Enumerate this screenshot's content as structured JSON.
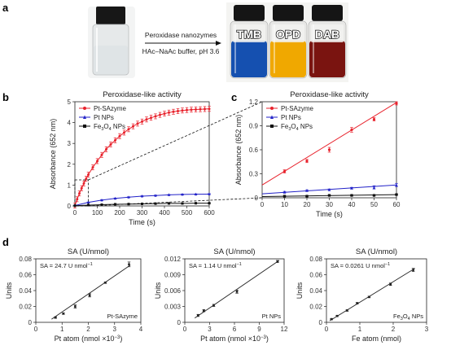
{
  "panel_labels": {
    "a": "a",
    "b": "b",
    "c": "c",
    "d": "d"
  },
  "panel_a": {
    "arrow_label_top": "Peroxidase nanozymes",
    "arrow_label_bottom": "HAc–NaAc buffer, pH 3.6",
    "vials": [
      {
        "label": "TMB",
        "color": "#1550b0"
      },
      {
        "label": "OPD",
        "color": "#f0a800"
      },
      {
        "label": "DAB",
        "color": "#7a1410"
      }
    ],
    "colors": {
      "clear_vial": "#e9ecec",
      "cap": "#151515"
    }
  },
  "colors": {
    "pt_sazyme": "#e8222c",
    "pt_nps": "#2222c8",
    "fe3o4_nps": "#111111"
  },
  "chart_data": [
    {
      "id": "b",
      "type": "line",
      "title": "Peroxidase-like activity",
      "xlabel": "Time (s)",
      "ylabel": "Absorbance (652 nm)",
      "xlim": [
        0,
        600
      ],
      "ylim": [
        0,
        5
      ],
      "xticks": [
        0,
        100,
        200,
        300,
        400,
        500,
        600
      ],
      "yticks": [
        0,
        1,
        2,
        3,
        4,
        5
      ],
      "legend": "top-left",
      "series": [
        {
          "key": "pt_sazyme",
          "name": "Pt-SAzyme",
          "marker": "circle",
          "x": [
            0,
            10,
            20,
            30,
            40,
            50,
            60,
            80,
            100,
            120,
            140,
            160,
            180,
            200,
            220,
            240,
            260,
            280,
            300,
            320,
            340,
            360,
            380,
            400,
            420,
            440,
            460,
            480,
            500,
            520,
            540,
            560,
            580,
            600
          ],
          "y": [
            0.02,
            0.32,
            0.6,
            0.85,
            1.08,
            1.3,
            1.5,
            1.85,
            2.15,
            2.45,
            2.72,
            2.95,
            3.15,
            3.35,
            3.52,
            3.68,
            3.82,
            3.95,
            4.05,
            4.15,
            4.23,
            4.3,
            4.37,
            4.43,
            4.48,
            4.52,
            4.55,
            4.58,
            4.6,
            4.62,
            4.63,
            4.64,
            4.65,
            4.66
          ],
          "err": 0.12
        },
        {
          "key": "pt_nps",
          "name": "Pt NPs",
          "marker": "triangle",
          "x": [
            0,
            60,
            120,
            180,
            240,
            300,
            360,
            420,
            480,
            540,
            600
          ],
          "y": [
            0.02,
            0.17,
            0.28,
            0.36,
            0.42,
            0.47,
            0.5,
            0.53,
            0.55,
            0.56,
            0.57
          ],
          "err": 0.02
        },
        {
          "key": "fe3o4_nps",
          "name": "Fe3O4 NPs",
          "name_main": "Fe",
          "name_sub1": "3",
          "name_mid": "O",
          "name_sub2": "4",
          "name_tail": " NPs",
          "marker": "square",
          "x": [
            0,
            60,
            120,
            180,
            240,
            300,
            360,
            420,
            480,
            540,
            600
          ],
          "y": [
            0.01,
            0.04,
            0.06,
            0.08,
            0.09,
            0.1,
            0.11,
            0.12,
            0.12,
            0.13,
            0.13
          ],
          "err": 0.01
        }
      ],
      "zoom_box": {
        "x": [
          0,
          60
        ],
        "y": [
          0,
          1.25
        ]
      }
    },
    {
      "id": "c",
      "type": "scatter",
      "title": "Peroxidase-like activity",
      "xlabel": "Time (s)",
      "ylabel": "Absorbance (652 nm)",
      "xlim": [
        0,
        60
      ],
      "ylim": [
        0,
        1.2
      ],
      "xticks": [
        0,
        10,
        20,
        30,
        40,
        50,
        60
      ],
      "yticks": [
        0,
        0.3,
        0.6,
        0.9,
        1.2
      ],
      "ytick_labels": [
        "0",
        "0.3",
        "0.6",
        "0.9",
        "1.2"
      ],
      "legend": "top-left",
      "series": [
        {
          "key": "pt_sazyme",
          "name": "Pt-SAzyme",
          "marker": "circle",
          "x": [
            10,
            20,
            30,
            40,
            50,
            60
          ],
          "y": [
            0.33,
            0.46,
            0.6,
            0.85,
            0.98,
            1.18
          ],
          "err": [
            0.02,
            0.02,
            0.03,
            0.03,
            0.02,
            0.02
          ],
          "fit": [
            0.16,
            1.19
          ]
        },
        {
          "key": "pt_nps",
          "name": "Pt NPs",
          "marker": "triangle",
          "x": [
            10,
            20,
            30,
            40,
            50,
            60
          ],
          "y": [
            0.07,
            0.09,
            0.1,
            0.12,
            0.13,
            0.16
          ],
          "err": [
            0.01,
            0.01,
            0.01,
            0.01,
            0.02,
            0.02
          ],
          "fit": [
            0.05,
            0.16
          ]
        },
        {
          "key": "fe3o4_nps",
          "name": "Fe3O4 NPs",
          "name_main": "Fe",
          "name_sub1": "3",
          "name_mid": "O",
          "name_sub2": "4",
          "name_tail": " NPs",
          "marker": "square",
          "x": [
            10,
            20,
            30,
            40,
            50,
            60
          ],
          "y": [
            0.02,
            0.02,
            0.03,
            0.03,
            0.03,
            0.04
          ],
          "err": [
            0.005,
            0.005,
            0.005,
            0.005,
            0.005,
            0.005
          ],
          "fit": [
            0.015,
            0.04
          ]
        }
      ]
    },
    {
      "id": "d1",
      "type": "scatter",
      "title": "SA (U/nmol)",
      "ylabel": "Units",
      "xlabel_main": "Pt atom (nmol ×10",
      "xlabel_sup": "−3",
      "xlabel_tail": ")",
      "xlim": [
        0,
        4
      ],
      "ylim": [
        0,
        0.08
      ],
      "xticks": [
        0,
        1,
        2,
        3,
        4
      ],
      "yticks": [
        0,
        0.02,
        0.04,
        0.06,
        0.08
      ],
      "ytick_labels": [
        "0",
        "0.02",
        "0.04",
        "0.06",
        "0.08"
      ],
      "annotation_main": "SA = 24.7 U nmol",
      "annotation_sup": "−1",
      "corner_label": "Pt-SAzyme",
      "x": [
        0.75,
        1.05,
        1.5,
        2.05,
        2.65,
        3.55
      ],
      "y": [
        0.006,
        0.011,
        0.02,
        0.034,
        0.05,
        0.073
      ],
      "err": [
        0.001,
        0.001,
        0.002,
        0.002,
        0.001,
        0.003
      ],
      "fit": [
        [
          0.6,
          0.004
        ],
        [
          3.6,
          0.072
        ]
      ]
    },
    {
      "id": "d2",
      "type": "scatter",
      "title": "SA (U/nmol)",
      "ylabel": "Units",
      "xlabel_main": "Pt atom (nmol ×10",
      "xlabel_sup": "−3",
      "xlabel_tail": ")",
      "xlim": [
        0,
        12
      ],
      "ylim": [
        0,
        0.012
      ],
      "xticks": [
        0,
        3,
        6,
        9,
        12
      ],
      "yticks": [
        0,
        0.003,
        0.006,
        0.009,
        0.012
      ],
      "ytick_labels": [
        "0",
        "0.003",
        "0.006",
        "0.009",
        "0.012"
      ],
      "annotation_main": "SA = 1.14 U nmol",
      "annotation_sup": "−1",
      "corner_label": "Pt NPs",
      "x": [
        1.6,
        2.3,
        3.5,
        6.3,
        11.2
      ],
      "y": [
        0.0013,
        0.0022,
        0.0032,
        0.0058,
        0.0115
      ],
      "err": [
        0.0002,
        0.0002,
        0.0002,
        0.0003,
        0.0002
      ],
      "fit": [
        [
          1.2,
          0.0008
        ],
        [
          11.4,
          0.0117
        ]
      ]
    },
    {
      "id": "d3",
      "type": "scatter",
      "title": "SA (U/nmol)",
      "ylabel": "Units",
      "xlabel": "Fe atom (nmol)",
      "xlim": [
        0,
        3
      ],
      "ylim": [
        0,
        0.08
      ],
      "xticks": [
        0,
        1,
        2,
        3
      ],
      "yticks": [
        0,
        0.02,
        0.04,
        0.06,
        0.08
      ],
      "ytick_labels": [
        "0",
        "0.02",
        "0.04",
        "0.06",
        "0.08"
      ],
      "annotation_main": "SA = 0.0261 U nmol",
      "annotation_sup": "−1",
      "corner_main": "Fe",
      "corner_sub1": "3",
      "corner_mid": "O",
      "corner_sub2": "4",
      "corner_tail": " NPs",
      "x": [
        0.15,
        0.32,
        0.62,
        0.92,
        1.28,
        1.92,
        2.6
      ],
      "y": [
        0.004,
        0.008,
        0.015,
        0.024,
        0.032,
        0.048,
        0.066
      ],
      "err": [
        0.0008,
        0.0008,
        0.001,
        0.001,
        0.001,
        0.0015,
        0.002
      ],
      "fit": [
        [
          0.1,
          0.002
        ],
        [
          2.65,
          0.068
        ]
      ]
    }
  ]
}
